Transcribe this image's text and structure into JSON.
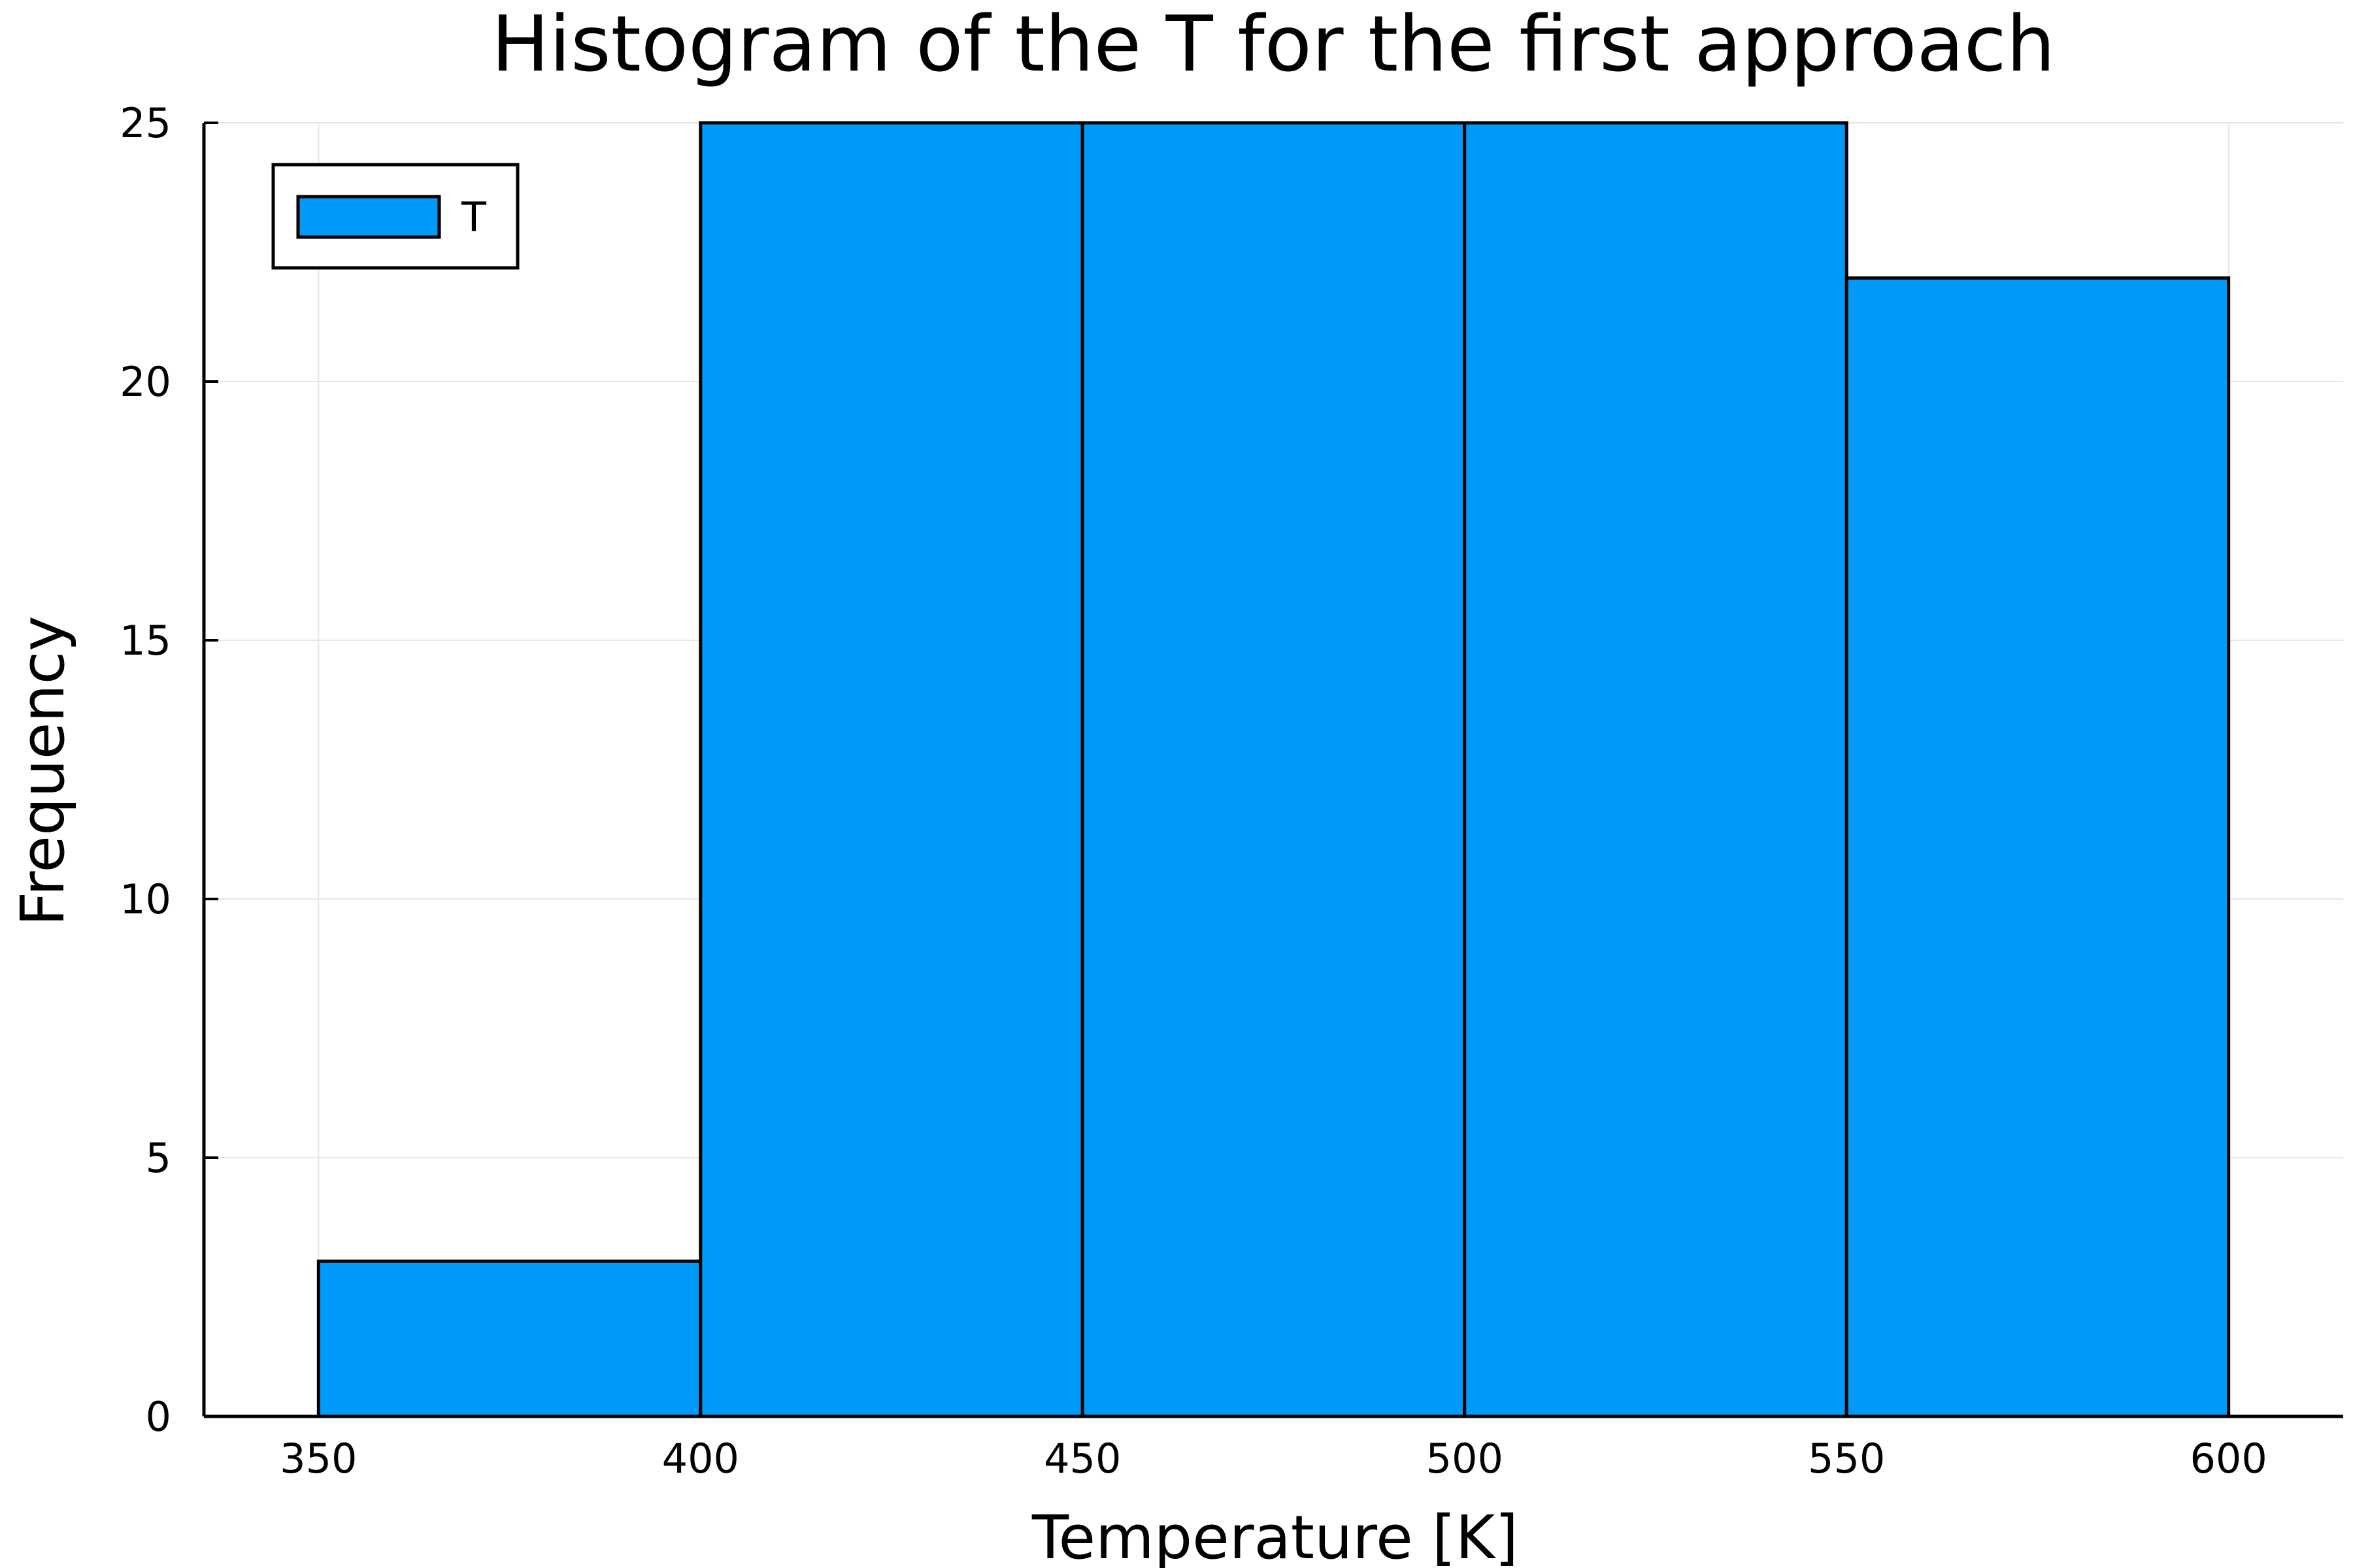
{
  "chart_data": {
    "type": "bar",
    "title": "Histogram of the T for the first approach",
    "xlabel": "Temperature [K]",
    "ylabel": "Frequency",
    "bins": [
      {
        "start": 350,
        "end": 400,
        "value": 3
      },
      {
        "start": 400,
        "end": 450,
        "value": 25
      },
      {
        "start": 450,
        "end": 500,
        "value": 25
      },
      {
        "start": 500,
        "end": 550,
        "value": 25
      },
      {
        "start": 550,
        "end": 600,
        "value": 22
      }
    ],
    "xlim": [
      335,
      615
    ],
    "ylim": [
      0,
      25
    ],
    "xticks": [
      "350",
      "400",
      "450",
      "500",
      "550",
      "600"
    ],
    "yticks": [
      "0",
      "5",
      "10",
      "15",
      "20",
      "25"
    ],
    "series": [
      {
        "name": "T",
        "color": "#009AFA"
      }
    ],
    "legend": {
      "position": "top-left"
    },
    "grid": true
  }
}
